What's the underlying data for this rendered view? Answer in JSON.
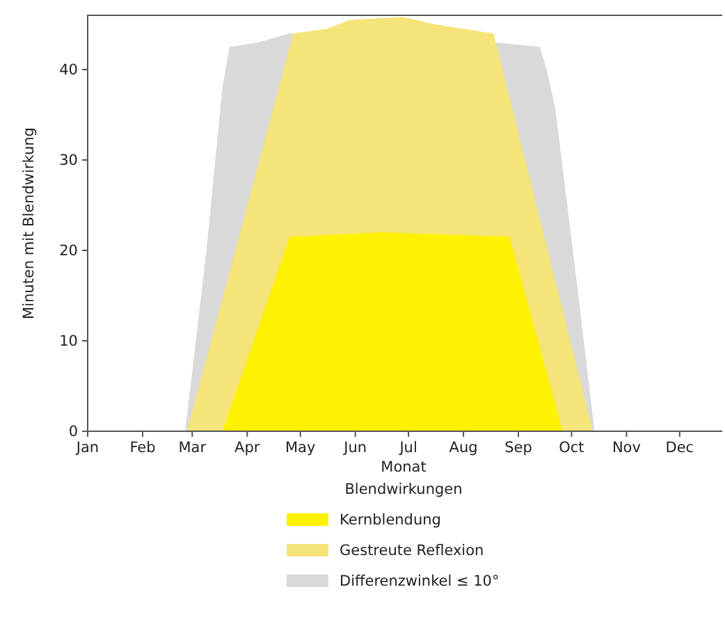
{
  "chart_data": {
    "type": "area",
    "xlabel": "Monat",
    "ylabel": "Minuten mit Blendwirkung",
    "legend_title": "Blendwirkungen",
    "legend": "bottom",
    "xlim": [
      "--01-01",
      "--12-25"
    ],
    "xticks": [
      {
        "value": "--01-01",
        "label": "Jan"
      },
      {
        "value": "--02-01",
        "label": "Feb"
      },
      {
        "value": "--03-01",
        "label": "Mar"
      },
      {
        "value": "--04-01",
        "label": "Apr"
      },
      {
        "value": "--05-01",
        "label": "May"
      },
      {
        "value": "--06-01",
        "label": "Jun"
      },
      {
        "value": "--07-01",
        "label": "Jul"
      },
      {
        "value": "--08-01",
        "label": "Aug"
      },
      {
        "value": "--09-01",
        "label": "Sep"
      },
      {
        "value": "--10-01",
        "label": "Oct"
      },
      {
        "value": "--11-01",
        "label": "Nov"
      },
      {
        "value": "--12-01",
        "label": "Dec"
      }
    ],
    "ylim": [
      0,
      46
    ],
    "yticks": [
      0,
      10,
      20,
      30,
      40
    ],
    "series": [
      {
        "name": "Kernblendung",
        "color": "#fff200",
        "x": [
          "--03-18",
          "--04-25",
          "--06-16",
          "--08-27",
          "--09-26"
        ],
        "values": [
          0,
          21.5,
          22,
          21.5,
          0
        ]
      },
      {
        "name": "Gestreute Reflexion",
        "color": "#f5e47a",
        "x": [
          "--02-26",
          "--04-27",
          "--05-16",
          "--05-29",
          "--06-28",
          "--07-16",
          "--08-18",
          "--10-13"
        ],
        "values": [
          0,
          44,
          44.5,
          45.5,
          45.8,
          45,
          44,
          0
        ]
      },
      {
        "name": "Differenzwinkel ≤ 10°",
        "color": "#d9d9d9",
        "x": [
          "--02-25",
          "--03-09",
          "--03-18",
          "--03-22",
          "--04-07",
          "--04-25",
          "--08-19",
          "--09-13",
          "--09-17",
          "--09-22",
          "--10-03",
          "--10-14"
        ],
        "values": [
          0,
          20,
          38,
          42.5,
          43,
          44,
          43,
          42.5,
          40,
          35.5,
          18,
          0
        ]
      }
    ]
  }
}
